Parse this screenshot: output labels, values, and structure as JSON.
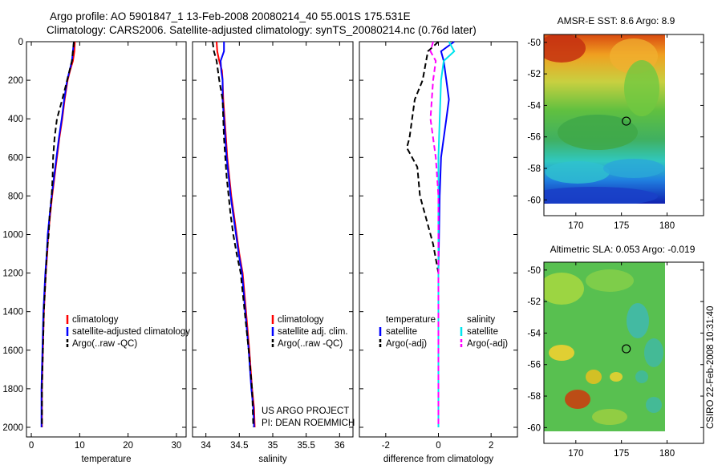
{
  "header": {
    "title_line1": "Argo profile: AO 5901847_1 13-Feb-2008 20080214_40 55.001S 175.531E",
    "title_line2": "Climatology: CARS2006. Satellite-adjusted climatology: synTS_20080214.nc (0.76d later)"
  },
  "credit": {
    "project": "US ARGO PROJECT",
    "pi": "PI: DEAN ROEMMICH",
    "stamp": "CSIRO 22-Feb-2008 10:31:40"
  },
  "colors": {
    "climatology": "#ff0000",
    "satellite": "#0000ff",
    "argo_temp": "#000000",
    "satellite_sal": "#00e5ee",
    "argo_sal": "#ff00ff",
    "marker": "#000000"
  },
  "chart_data": [
    {
      "type": "line",
      "id": "temperature",
      "xlabel": "temperature",
      "ylabel": "",
      "xlim": [
        -1,
        32
      ],
      "ylim": [
        2050,
        0
      ],
      "xticks": [
        0,
        10,
        20,
        30
      ],
      "xtick_labels": [
        "0",
        "10",
        "20",
        "30"
      ],
      "yticks": [
        0,
        200,
        400,
        600,
        800,
        1000,
        1200,
        1400,
        1600,
        1800,
        2000
      ],
      "ytick_labels": [
        "0",
        "200",
        "400",
        "600",
        "800",
        "1000",
        "1200",
        "1400",
        "1600",
        "1800",
        "2000"
      ],
      "legend": [
        "climatology",
        "satellite-adjusted climatology",
        "Argo(..raw -QC)"
      ],
      "series": [
        {
          "name": "climatology",
          "color": "#ff0000",
          "dash": "solid",
          "x": [
            9.0,
            8.9,
            8.6,
            8.0,
            7.5,
            6.9,
            6.4,
            5.8,
            5.3,
            4.8,
            4.3,
            3.9,
            3.5,
            3.3,
            3.0,
            2.8,
            2.6,
            2.5,
            2.4,
            2.3,
            2.2,
            2.2
          ],
          "y": [
            0,
            50,
            100,
            150,
            200,
            300,
            400,
            500,
            600,
            700,
            800,
            900,
            1000,
            1100,
            1200,
            1300,
            1400,
            1500,
            1600,
            1700,
            1800,
            2000
          ]
        },
        {
          "name": "satellite-adjusted climatology",
          "color": "#0000ff",
          "dash": "solid",
          "x": [
            8.8,
            8.6,
            8.4,
            7.9,
            7.4,
            6.8,
            6.3,
            5.7,
            5.2,
            4.7,
            4.2,
            3.8,
            3.4,
            3.2,
            2.9,
            2.7,
            2.5,
            2.4,
            2.3,
            2.2,
            2.1,
            2.1
          ],
          "y": [
            0,
            50,
            100,
            150,
            200,
            300,
            400,
            500,
            600,
            700,
            800,
            900,
            1000,
            1100,
            1200,
            1300,
            1400,
            1500,
            1600,
            1700,
            1800,
            2000
          ]
        },
        {
          "name": "Argo(..raw -QC)",
          "color": "#000000",
          "dash": "dashed",
          "x": [
            8.8,
            8.6,
            8.4,
            7.4,
            6.4,
            5.3,
            4.8,
            4.5,
            4.4,
            4.2,
            3.8,
            3.6,
            3.2,
            3.0,
            2.8,
            2.6,
            2.5,
            2.4,
            2.3,
            2.2,
            2.2
          ],
          "y": [
            0,
            50,
            100,
            200,
            300,
            400,
            500,
            600,
            700,
            800,
            900,
            1000,
            1100,
            1200,
            1300,
            1400,
            1500,
            1600,
            1700,
            1800,
            2000
          ]
        }
      ]
    },
    {
      "type": "line",
      "id": "salinity",
      "xlabel": "salinity",
      "ylabel": "",
      "xlim": [
        33.8,
        36.2
      ],
      "ylim": [
        2050,
        0
      ],
      "xticks": [
        34,
        34.5,
        35,
        35.5,
        36
      ],
      "xtick_labels": [
        "34",
        "34.5",
        "35",
        "35.5",
        "36"
      ],
      "legend": [
        "climatology",
        "satellite adj. clim.",
        "Argo(..raw -QC)"
      ],
      "series": [
        {
          "name": "climatology",
          "color": "#ff0000",
          "dash": "solid",
          "x": [
            34.16,
            34.17,
            34.2,
            34.24,
            34.25,
            34.26,
            34.28,
            34.3,
            34.32,
            34.35,
            34.38,
            34.42,
            34.46,
            34.5,
            34.55,
            34.6,
            34.65,
            34.69,
            34.72,
            34.73
          ],
          "y": [
            0,
            50,
            100,
            150,
            200,
            300,
            400,
            500,
            600,
            700,
            800,
            900,
            1000,
            1100,
            1200,
            1400,
            1600,
            1800,
            1900,
            2000
          ]
        },
        {
          "name": "satellite adj. clim.",
          "color": "#0000ff",
          "dash": "solid",
          "x": [
            34.27,
            34.27,
            34.22,
            34.23,
            34.25,
            34.25,
            34.27,
            34.29,
            34.31,
            34.34,
            34.37,
            34.41,
            34.45,
            34.49,
            34.54,
            34.59,
            34.64,
            34.68,
            34.71,
            34.72
          ],
          "y": [
            0,
            50,
            100,
            150,
            200,
            300,
            400,
            500,
            600,
            700,
            800,
            900,
            1000,
            1100,
            1200,
            1400,
            1600,
            1800,
            1900,
            2000
          ]
        },
        {
          "name": "Argo(..raw -QC)",
          "color": "#000000",
          "dash": "dashed",
          "x": [
            34.1,
            34.12,
            34.16,
            34.2,
            34.25,
            34.26,
            34.27,
            34.29,
            34.31,
            34.34,
            34.37,
            34.41,
            34.46,
            34.52,
            34.58,
            34.64,
            34.69,
            34.71
          ],
          "y": [
            0,
            50,
            100,
            200,
            300,
            400,
            500,
            600,
            700,
            800,
            900,
            1000,
            1100,
            1200,
            1400,
            1600,
            1800,
            2000
          ]
        }
      ]
    },
    {
      "type": "line",
      "id": "difference",
      "xlabel": "difference from climatology",
      "ylabel": "",
      "xlim": [
        -3,
        3
      ],
      "ylim": [
        2050,
        0
      ],
      "xticks": [
        -2,
        0,
        2
      ],
      "xtick_labels": [
        "-2",
        "0",
        "2"
      ],
      "legend_header_left": "temperature",
      "legend_header_right": "salinity",
      "legend": [
        "satellite",
        "Argo(-adj)",
        "satellite",
        "Argo(-adj)"
      ],
      "series": [
        {
          "name": "temperature satellite",
          "color": "#0000ff",
          "dash": "solid",
          "x": [
            0.6,
            0.1,
            0.2,
            0.3,
            0.4,
            0.3,
            0.2,
            0.1,
            0.05,
            0.0,
            0.0
          ],
          "y": [
            0,
            50,
            100,
            200,
            300,
            400,
            500,
            600,
            800,
            1200,
            2000
          ]
        },
        {
          "name": "temperature Argo(-adj)",
          "color": "#000000",
          "dash": "dashed",
          "x": [
            0.0,
            -0.4,
            -0.6,
            -0.9,
            -1.0,
            -1.1,
            -1.2,
            -0.8,
            -0.7,
            -0.5,
            -0.2,
            0.0,
            0.0
          ],
          "y": [
            0,
            50,
            200,
            300,
            400,
            500,
            550,
            650,
            800,
            900,
            1050,
            1200,
            2000
          ]
        },
        {
          "name": "salinity satellite",
          "color": "#00e5ee",
          "dash": "solid",
          "x": [
            0.4,
            0.6,
            0.2,
            0.1,
            0.05,
            0.0,
            0.0,
            0.0
          ],
          "y": [
            0,
            50,
            100,
            200,
            400,
            600,
            1000,
            2000
          ]
        },
        {
          "name": "salinity Argo(-adj)",
          "color": "#ff00ff",
          "dash": "dashed",
          "x": [
            -0.2,
            -0.3,
            -0.1,
            -0.2,
            -0.3,
            -0.1,
            0.0,
            0.0,
            0.0
          ],
          "y": [
            0,
            50,
            100,
            200,
            400,
            600,
            800,
            1200,
            2000
          ]
        }
      ]
    },
    {
      "type": "heatmap",
      "id": "sst_map",
      "title": "AMSR-E SST: 8.6 Argo: 8.9",
      "xlim": [
        166.5,
        184
      ],
      "ylim": [
        -61,
        -49.5
      ],
      "xticks": [
        170,
        175,
        180
      ],
      "xtick_labels": [
        "170",
        "175",
        "180"
      ],
      "yticks": [
        -50,
        -52,
        -54,
        -56,
        -58,
        -60
      ],
      "ytick_labels": [
        "-50",
        "-52",
        "-54",
        "-56",
        "-58",
        "-60"
      ],
      "data_extent": {
        "lon": [
          166.5,
          180
        ],
        "lat": [
          -60.3,
          -49.2
        ]
      },
      "argo_position": {
        "lon": 175.53,
        "lat": -55.0
      }
    },
    {
      "type": "heatmap",
      "id": "sla_map",
      "title": "Altimetric SLA: 0.053 Argo: -0.019",
      "xlim": [
        166.5,
        184
      ],
      "ylim": [
        -61,
        -49.5
      ],
      "xticks": [
        170,
        175,
        180
      ],
      "xtick_labels": [
        "170",
        "175",
        "180"
      ],
      "yticks": [
        -50,
        -52,
        -54,
        -56,
        -58,
        -60
      ],
      "ytick_labels": [
        "-50",
        "-52",
        "-54",
        "-56",
        "-58",
        "-60"
      ],
      "data_extent": {
        "lon": [
          166.5,
          180
        ],
        "lat": [
          -60.3,
          -49.2
        ]
      },
      "argo_position": {
        "lon": 175.53,
        "lat": -55.0
      }
    }
  ]
}
